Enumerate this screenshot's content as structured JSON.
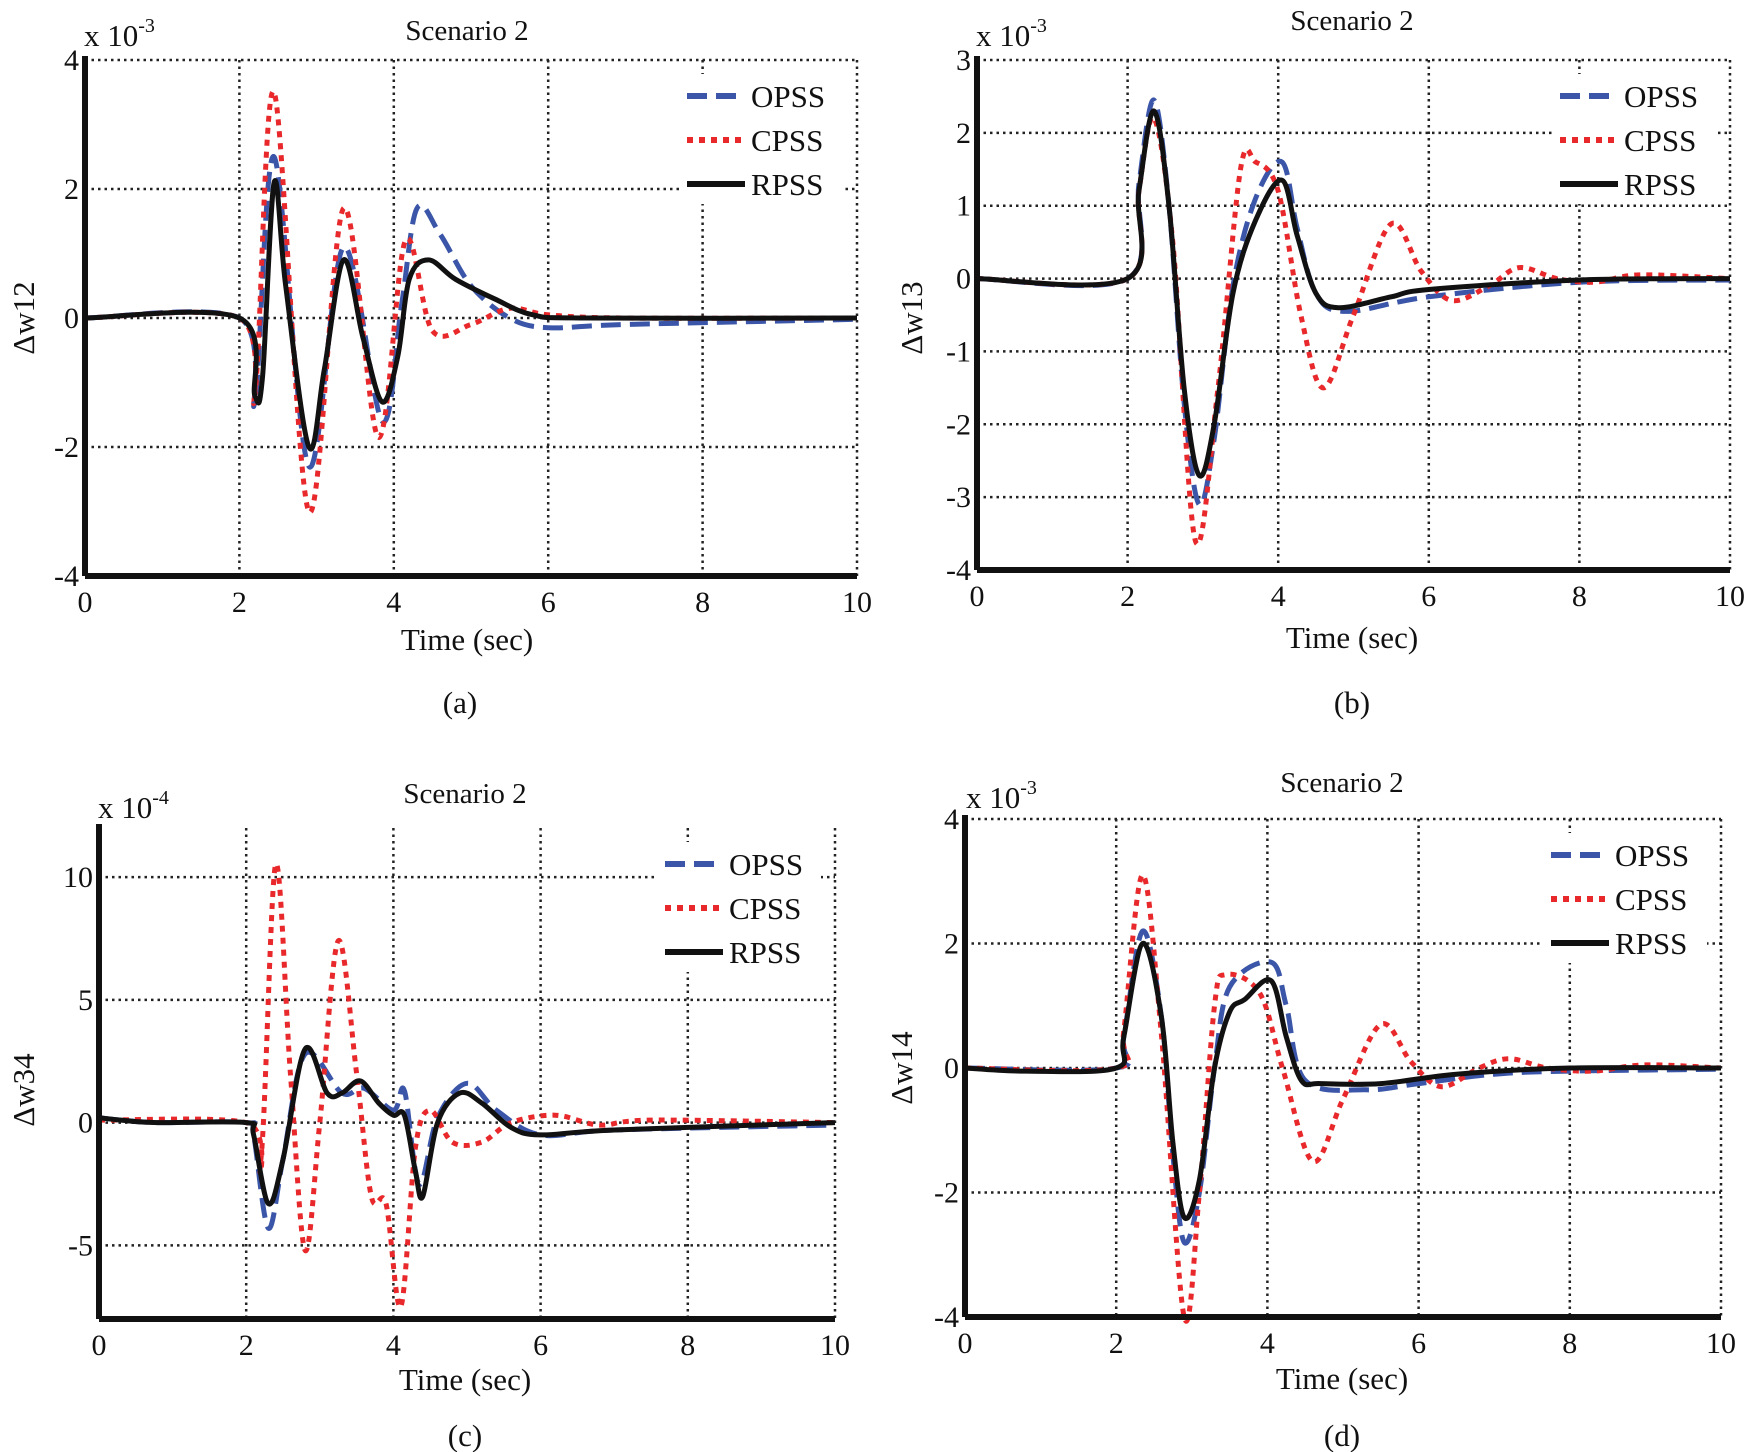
{
  "colors": {
    "OPSS": "#3b56a8",
    "CPSS": "#e8282b",
    "RPSS": "#111111"
  },
  "legend": [
    "OPSS",
    "CPSS",
    "RPSS"
  ],
  "chart_data": [
    {
      "type": "line",
      "panel": "(a)",
      "title": "Scenario 2",
      "xlabel": "Time (sec)",
      "ylabel": "Δw12",
      "exponent": "x 10",
      "exponent_power": "-3",
      "xlim": [
        0,
        10
      ],
      "ylim": [
        -4,
        4
      ],
      "xticks": [
        0,
        2,
        4,
        6,
        8,
        10
      ],
      "yticks": [
        -4,
        -2,
        0,
        2,
        4
      ],
      "grid": true,
      "legend": "top-right",
      "series": [
        {
          "name": "OPSS",
          "x": [
            0,
            2,
            2.2,
            2.45,
            2.9,
            3.35,
            3.85,
            4.1,
            4.3,
            4.6,
            5.0,
            5.5,
            6.0,
            7,
            10
          ],
          "y": [
            0,
            0,
            -1.3,
            2.5,
            -2.3,
            1.1,
            -1.6,
            0.2,
            1.7,
            1.3,
            0.5,
            0,
            -0.15,
            -0.1,
            -0.02
          ]
        },
        {
          "name": "CPSS",
          "x": [
            0,
            2,
            2.2,
            2.45,
            2.9,
            3.35,
            3.8,
            4.15,
            4.5,
            5.0,
            5.5,
            6.0,
            7,
            10
          ],
          "y": [
            0,
            0,
            -1.2,
            3.5,
            -3.0,
            1.7,
            -1.85,
            1.2,
            -0.2,
            -0.1,
            0.15,
            0.05,
            0,
            0
          ]
        },
        {
          "name": "RPSS",
          "x": [
            0,
            2,
            2.2,
            2.3,
            2.45,
            2.6,
            2.9,
            3.1,
            3.35,
            3.6,
            3.85,
            4.05,
            4.2,
            4.45,
            4.8,
            5.3,
            5.8,
            6.5,
            10
          ],
          "y": [
            0,
            0,
            -1.2,
            -0.9,
            2.1,
            0.5,
            -2.0,
            -0.8,
            0.9,
            -0.3,
            -1.3,
            -0.6,
            0.6,
            0.9,
            0.6,
            0.3,
            0.05,
            0,
            0
          ]
        }
      ]
    },
    {
      "type": "line",
      "panel": "(b)",
      "title": "Scenario 2",
      "xlabel": "Time (sec)",
      "ylabel": "Δw13",
      "exponent": "x 10",
      "exponent_power": "-3",
      "xlim": [
        0,
        10
      ],
      "ylim": [
        -4,
        3
      ],
      "xticks": [
        0,
        2,
        4,
        6,
        8,
        10
      ],
      "yticks": [
        -4,
        -3,
        -2,
        -1,
        0,
        1,
        2,
        3
      ],
      "grid": true,
      "legend": "top-right",
      "series": [
        {
          "name": "OPSS",
          "x": [
            0,
            2,
            2.15,
            2.35,
            2.55,
            2.75,
            2.95,
            3.15,
            3.4,
            3.7,
            4.05,
            4.25,
            4.5,
            4.9,
            6,
            8,
            10
          ],
          "y": [
            0,
            0,
            1.3,
            2.45,
            1.0,
            -1.7,
            -3.1,
            -2.2,
            -0.1,
            1.1,
            1.6,
            0.7,
            -0.2,
            -0.45,
            -0.25,
            -0.05,
            -0.02
          ]
        },
        {
          "name": "CPSS",
          "x": [
            0,
            2,
            2.15,
            2.35,
            2.6,
            2.9,
            3.2,
            3.5,
            3.7,
            4.0,
            4.3,
            4.6,
            5.0,
            5.5,
            5.9,
            6.3,
            6.8,
            7.2,
            7.7,
            8.2,
            8.8,
            10
          ],
          "y": [
            0,
            0,
            1.2,
            2.2,
            0.5,
            -3.6,
            -1.5,
            1.5,
            1.6,
            1.2,
            -0.5,
            -1.5,
            -0.5,
            0.75,
            0.1,
            -0.3,
            -0.1,
            0.15,
            0,
            -0.05,
            0.05,
            0
          ]
        },
        {
          "name": "RPSS",
          "x": [
            0,
            2,
            2.15,
            2.35,
            2.55,
            2.75,
            2.95,
            3.15,
            3.4,
            3.7,
            4.05,
            4.25,
            4.5,
            4.8,
            5.5,
            6,
            8,
            10
          ],
          "y": [
            0,
            0,
            1.2,
            2.3,
            1.0,
            -1.5,
            -2.7,
            -2.0,
            -0.2,
            0.8,
            1.35,
            0.6,
            -0.2,
            -0.4,
            -0.25,
            -0.15,
            -0.02,
            0
          ]
        }
      ]
    },
    {
      "type": "line",
      "panel": "(c)",
      "title": "Scenario 2",
      "xlabel": "Time (sec)",
      "ylabel": "Δw34",
      "exponent": "x 10",
      "exponent_power": "-4",
      "xlim": [
        0,
        10
      ],
      "ylim": [
        -8,
        12
      ],
      "xticks": [
        0,
        2,
        4,
        6,
        8,
        10
      ],
      "yticks": [
        -5,
        0,
        5,
        10
      ],
      "grid": true,
      "legend": "top-right",
      "series": [
        {
          "name": "OPSS",
          "x": [
            0,
            0.3,
            0.8,
            2,
            2.1,
            2.3,
            2.5,
            2.8,
            3.3,
            3.6,
            4.0,
            4.15,
            4.35,
            4.6,
            5.0,
            5.4,
            6,
            7,
            10
          ],
          "y": [
            0.2,
            0.1,
            0,
            0,
            -0.5,
            -4.3,
            -1.5,
            2.8,
            1.2,
            1.4,
            0.5,
            1.3,
            -2.5,
            0.2,
            1.6,
            0.5,
            -0.5,
            -0.3,
            -0.1
          ]
        },
        {
          "name": "CPSS",
          "x": [
            0,
            2,
            2.2,
            2.4,
            2.6,
            2.8,
            3.0,
            3.25,
            3.5,
            3.7,
            3.9,
            4.1,
            4.3,
            4.5,
            4.8,
            5.2,
            5.6,
            6.2,
            6.8,
            7.5,
            10
          ],
          "y": [
            0.1,
            0,
            -1.5,
            10.5,
            2,
            -5.2,
            0,
            7.4,
            2,
            -3,
            -3.3,
            -7.5,
            -1,
            0.5,
            -0.8,
            -0.8,
            0,
            0.3,
            -0.1,
            0.1,
            0
          ]
        },
        {
          "name": "RPSS",
          "x": [
            0,
            0.3,
            0.8,
            2,
            2.1,
            2.3,
            2.5,
            2.8,
            3.1,
            3.3,
            3.55,
            3.8,
            4.0,
            4.15,
            4.3,
            4.4,
            4.6,
            4.9,
            5.2,
            5.6,
            6.0,
            7,
            10
          ],
          "y": [
            0.2,
            0.1,
            0,
            0,
            -0.5,
            -3.3,
            -1.5,
            3.0,
            1.2,
            1.2,
            1.7,
            0.8,
            0.3,
            0.3,
            -2.0,
            -3.0,
            0,
            1.2,
            0.8,
            -0.2,
            -0.5,
            -0.3,
            0
          ]
        }
      ]
    },
    {
      "type": "line",
      "panel": "(d)",
      "title": "Scenario 2",
      "xlabel": "Time (sec)",
      "ylabel": "Δw14",
      "exponent": "x 10",
      "exponent_power": "-3",
      "xlim": [
        0,
        10
      ],
      "ylim": [
        -4,
        4
      ],
      "xticks": [
        0,
        2,
        4,
        6,
        8,
        10
      ],
      "yticks": [
        -4,
        -2,
        0,
        2,
        4
      ],
      "grid": true,
      "legend": "top-right",
      "series": [
        {
          "name": "OPSS",
          "x": [
            0,
            2,
            2.1,
            2.35,
            2.6,
            2.75,
            2.9,
            3.1,
            3.3,
            3.5,
            4.05,
            4.25,
            4.5,
            5.3,
            6,
            7,
            8,
            10
          ],
          "y": [
            0,
            0,
            0.5,
            2.2,
            0.8,
            -1.4,
            -2.8,
            -2.0,
            0,
            1.3,
            1.7,
            1.0,
            -0.2,
            -0.35,
            -0.25,
            -0.1,
            -0.05,
            -0.02
          ]
        },
        {
          "name": "CPSS",
          "x": [
            0,
            2,
            2.1,
            2.35,
            2.6,
            2.9,
            3.1,
            3.3,
            3.45,
            3.9,
            4.2,
            4.6,
            5.0,
            5.5,
            5.9,
            6.3,
            6.8,
            7.2,
            7.7,
            8.3,
            9,
            10
          ],
          "y": [
            0,
            0,
            0.6,
            3.1,
            0.5,
            -4.0,
            -2.0,
            1.0,
            1.5,
            1.2,
            0,
            -1.5,
            -0.5,
            0.7,
            0.1,
            -0.3,
            0,
            0.15,
            0,
            -0.05,
            0.05,
            0
          ]
        },
        {
          "name": "RPSS",
          "x": [
            0,
            0.8,
            2,
            2.1,
            2.35,
            2.6,
            2.75,
            2.9,
            3.1,
            3.3,
            3.5,
            3.7,
            4.05,
            4.25,
            4.45,
            4.7,
            5.5,
            6.5,
            8,
            10
          ],
          "y": [
            0,
            -0.05,
            0,
            0.5,
            2.0,
            0.8,
            -1.2,
            -2.4,
            -1.8,
            0,
            0.9,
            1.1,
            1.4,
            0.5,
            -0.2,
            -0.25,
            -0.25,
            -0.1,
            0,
            0
          ]
        }
      ]
    }
  ]
}
